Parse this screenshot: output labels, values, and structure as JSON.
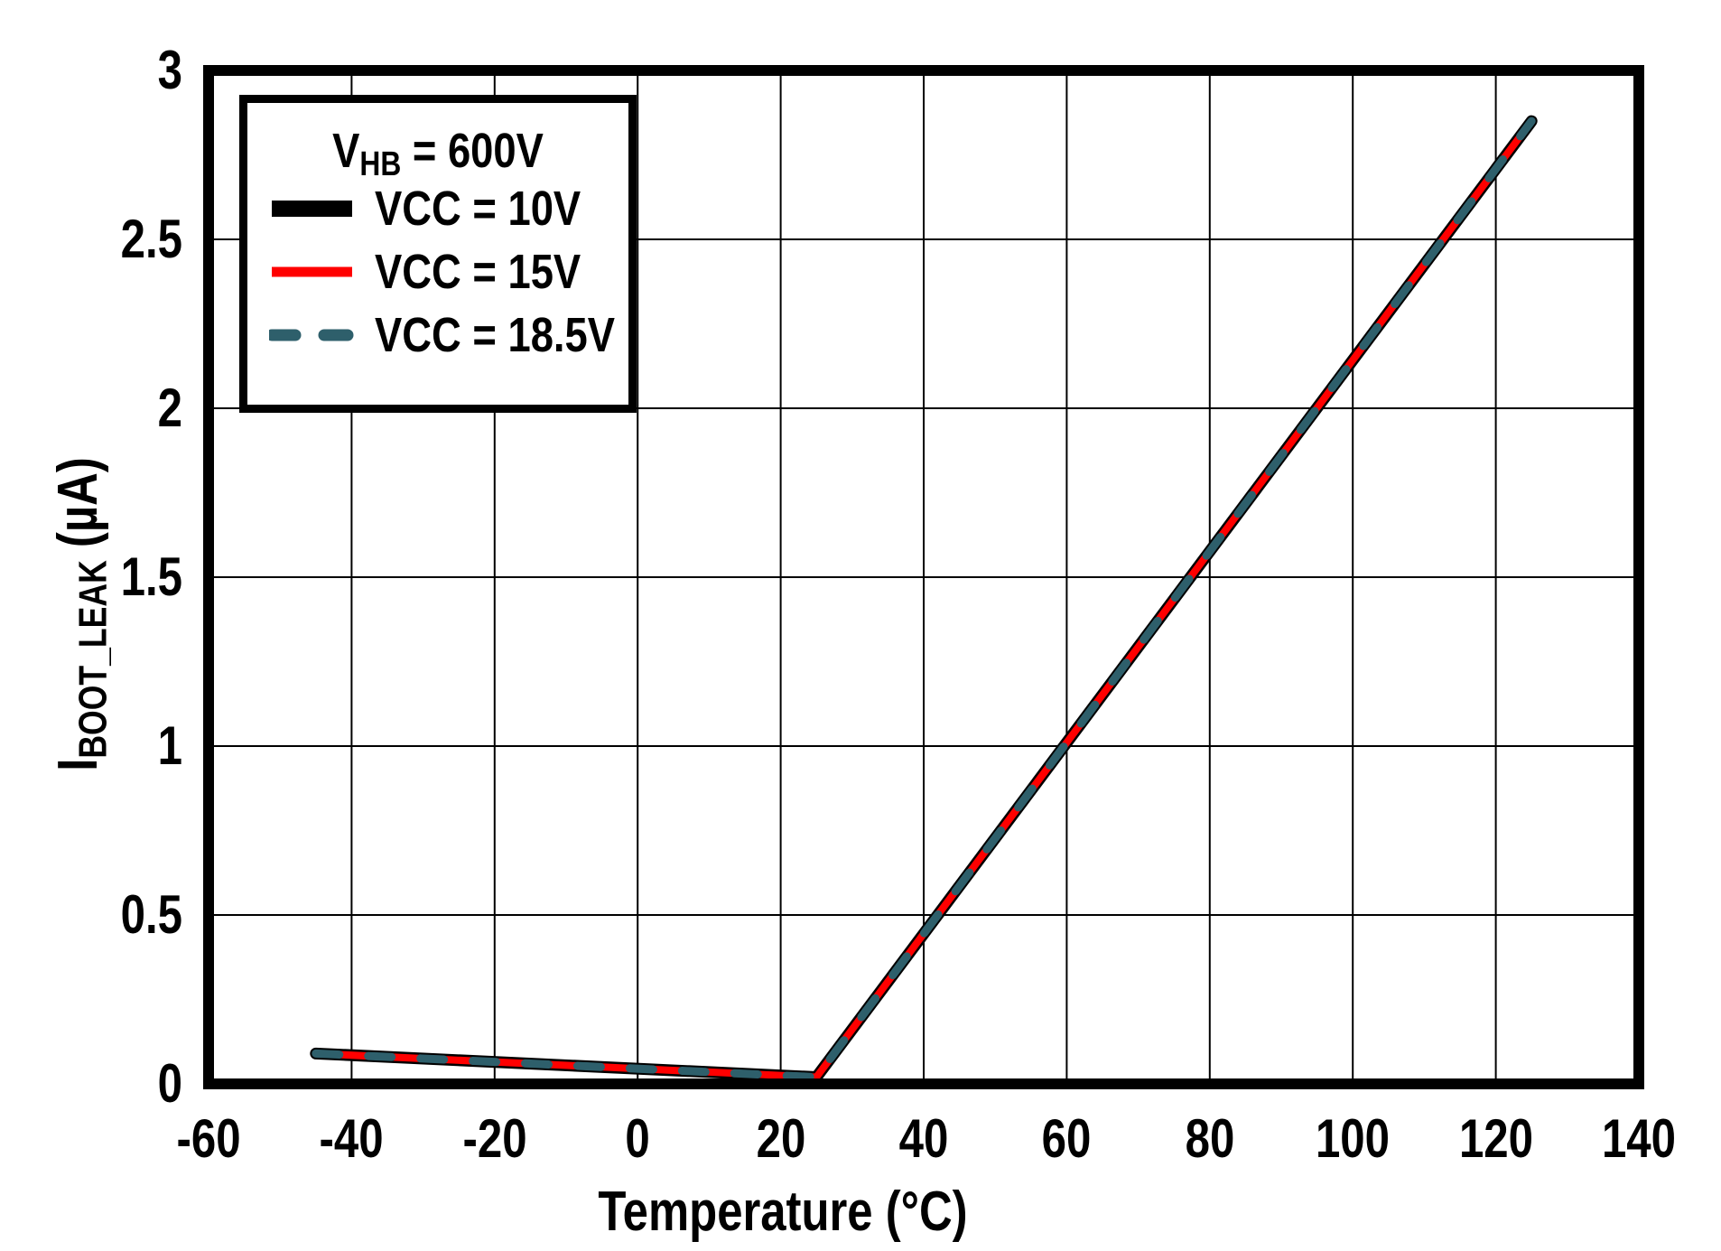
{
  "figure": {
    "background_color": "#ffffff",
    "frame_color": "#000000",
    "grid_color": "#000000"
  },
  "chart_data": {
    "type": "line",
    "title": "",
    "xlabel": "Temperature (°C)",
    "ylabel_text": "IBOOT_LEAK (µA)",
    "ylabel_parts": {
      "prefix": "I",
      "sub": "BOOT_LEAK",
      "suffix": " (µA)"
    },
    "xlim": [
      -60,
      140
    ],
    "ylim": [
      0,
      3
    ],
    "x_ticks": [
      -60,
      -40,
      -20,
      0,
      20,
      40,
      60,
      80,
      100,
      120,
      140
    ],
    "y_ticks": [
      0,
      0.5,
      1,
      1.5,
      2,
      2.5,
      3
    ],
    "x_tick_labels": [
      "-60",
      "-40",
      "-20",
      "0",
      "20",
      "40",
      "60",
      "80",
      "100",
      "120",
      "140"
    ],
    "y_tick_labels": [
      "0",
      "0.5",
      "1",
      "1.5",
      "2",
      "2.5",
      "3"
    ],
    "grid": true,
    "legend": {
      "position": "top-left",
      "header": {
        "prefix": "V",
        "sub": "HB",
        "suffix": " = 600V"
      }
    },
    "series": [
      {
        "name": "VCC = 10V",
        "color": "#000000",
        "style": "solid",
        "width": 13,
        "points": [
          [
            -45,
            0.09
          ],
          [
            25,
            0.02
          ],
          [
            125,
            2.85
          ]
        ]
      },
      {
        "name": "VCC = 15V",
        "color": "#ff0000",
        "style": "solid",
        "width": 8,
        "points": [
          [
            -45,
            0.09
          ],
          [
            25,
            0.02
          ],
          [
            125,
            2.85
          ]
        ]
      },
      {
        "name": "VCC = 18.5V",
        "color": "#2e5f6b",
        "style": "dashed",
        "width": 9,
        "points": [
          [
            -45,
            0.09
          ],
          [
            25,
            0.02
          ],
          [
            125,
            2.85
          ]
        ]
      }
    ]
  }
}
